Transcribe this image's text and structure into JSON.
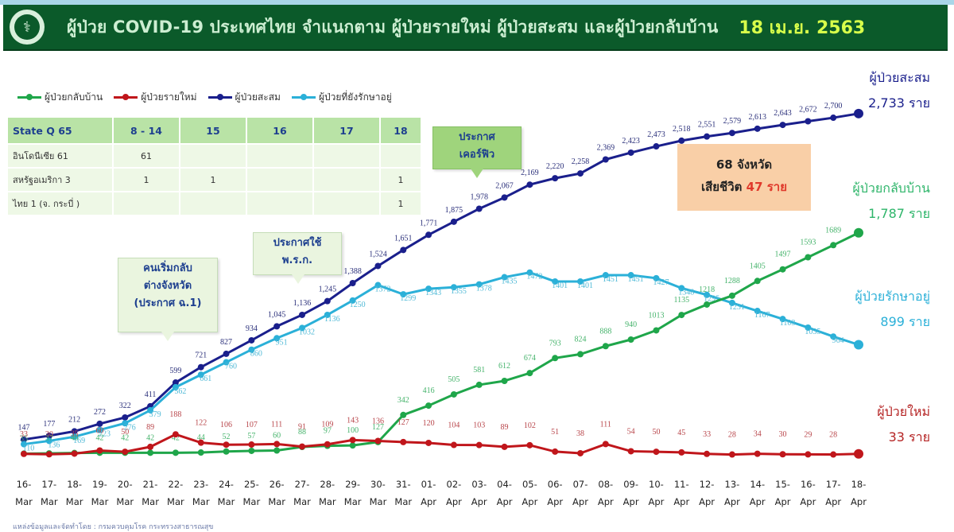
{
  "header": {
    "title": "ผู้ป่วย COVID-19 ประเทศไทย จำแนกตาม ผู้ป่วยรายใหม่ ผู้ป่วยสะสม  และผู้ป่วยกลับบ้าน",
    "date": "18 เม.ย. 2563",
    "logo_icon": "moph-caduceus-logo"
  },
  "legend": [
    {
      "label": "ผู้ป่วยกลับบ้าน",
      "color": "#1fa64a"
    },
    {
      "label": "ผู้ป่วยรายใหม่",
      "color": "#c0161b"
    },
    {
      "label": "ผู้ป่วยสะสม",
      "color": "#1a1f8c"
    },
    {
      "label": "ผู้ป่วยที่ยังรักษาอยู่",
      "color": "#2bb0d8"
    }
  ],
  "state_q_table": {
    "headers": [
      "State Q   65",
      "8 - 14",
      "15",
      "16",
      "17",
      "18"
    ],
    "rows": [
      [
        "อินโดนีเซีย 61",
        "61",
        "",
        "",
        "",
        ""
      ],
      [
        "สหรัฐอเมริกา 3",
        "1",
        "1",
        "",
        "",
        "1"
      ],
      [
        "ไทย 1 (จ. กระบี่ )",
        "",
        "",
        "",
        "",
        "1"
      ]
    ]
  },
  "callouts": [
    {
      "lines": [
        "คนเริ่มกลับ",
        "ต่างจังหวัด",
        "(ประกาศ ฉ.1)"
      ]
    },
    {
      "lines": [
        "ประกาศใช้",
        "พ.ร.ก."
      ]
    },
    {
      "lines": [
        "ประกาศ",
        "เคอร์ฟิว"
      ]
    }
  ],
  "summary_box": {
    "provinces": "68 จังหวัด",
    "deaths_prefix": "เสียชีวิต",
    "deaths_value": "47 ราย"
  },
  "end_labels": {
    "cumulative": {
      "title": "ผู้ป่วยสะสม",
      "value": "2,733 ราย"
    },
    "recovered": {
      "title": "ผู้ป่วยกลับบ้าน",
      "value": "1,787 ราย"
    },
    "active": {
      "title": "ผู้ป่วยรักษาอยู่",
      "value": "899 ราย"
    },
    "new": {
      "title": "ผู้ป่วยใหม่",
      "value": "33 ราย"
    }
  },
  "source_note": "แหล่งข้อมูลและจัดทำโดย : กรมควบคุมโรค กระทรวงสาธารณสุข",
  "chart_data": {
    "type": "line",
    "title": "ผู้ป่วย COVID-19 ประเทศไทย จำแนกตาม ผู้ป่วยรายใหม่ ผู้ป่วยสะสม และผู้ป่วยกลับบ้าน 18 เม.ย. 2563",
    "xlabel": "",
    "ylabel": "",
    "grid": false,
    "legend_position": "top-left",
    "x": [
      "16-Mar",
      "17-Mar",
      "18-Mar",
      "19-Mar",
      "20-Mar",
      "21-Mar",
      "22-Mar",
      "23-Mar",
      "24-Mar",
      "25-Mar",
      "26-Mar",
      "27-Mar",
      "28-Mar",
      "29-Mar",
      "30-Mar",
      "31-Mar",
      "01-Apr",
      "02-Apr",
      "03-Apr",
      "04-Apr",
      "05-Apr",
      "06-Apr",
      "07-Apr",
      "08-Apr",
      "09-Apr",
      "10-Apr",
      "11-Apr",
      "12-Apr",
      "13-Apr",
      "14-Apr",
      "15-Apr",
      "16-Apr",
      "17-Apr",
      "18-Apr"
    ],
    "series": [
      {
        "name": "ผู้ป่วยสะสม",
        "color": "#1a1f8c",
        "values": [
          147,
          177,
          212,
          272,
          322,
          411,
          599,
          721,
          827,
          934,
          1045,
          1136,
          1245,
          1388,
          1524,
          1651,
          1771,
          1875,
          1978,
          2067,
          2169,
          2220,
          2258,
          2369,
          2423,
          2473,
          2518,
          2551,
          2579,
          2613,
          2643,
          2672,
          2700,
          2733
        ]
      },
      {
        "name": "ผู้ป่วยที่ยังรักษาอยู่",
        "color": "#2bb0d8",
        "values": [
          110,
          136,
          169,
          223,
          276,
          379,
          562,
          661,
          760,
          860,
          951,
          1032,
          1136,
          1250,
          1372,
          1299,
          1343,
          1355,
          1378,
          1435,
          1472,
          1401,
          1401,
          1451,
          1451,
          1427,
          1348,
          1295,
          1231,
          1167,
          1103,
          1035,
          964,
          899
        ]
      },
      {
        "name": "ผู้ป่วยกลับบ้าน",
        "color": "#1fa64a",
        "values": [
          35,
          37,
          40,
          42,
          42,
          42,
          42,
          44,
          52,
          57,
          60,
          88,
          97,
          100,
          127,
          342,
          416,
          505,
          581,
          612,
          674,
          793,
          824,
          888,
          940,
          1013,
          1135,
          1218,
          1288,
          1405,
          1497,
          1593,
          1689,
          1787
        ]
      },
      {
        "name": "ผู้ป่วยรายใหม่",
        "color": "#c0161b",
        "values": [
          33,
          30,
          35,
          60,
          50,
          89,
          188,
          122,
          106,
          107,
          111,
          91,
          109,
          143,
          136,
          127,
          120,
          104,
          103,
          89,
          102,
          51,
          38,
          111,
          54,
          50,
          45,
          33,
          28,
          34,
          30,
          29,
          28,
          33
        ]
      }
    ],
    "ylim": [
      0,
      2800
    ]
  }
}
